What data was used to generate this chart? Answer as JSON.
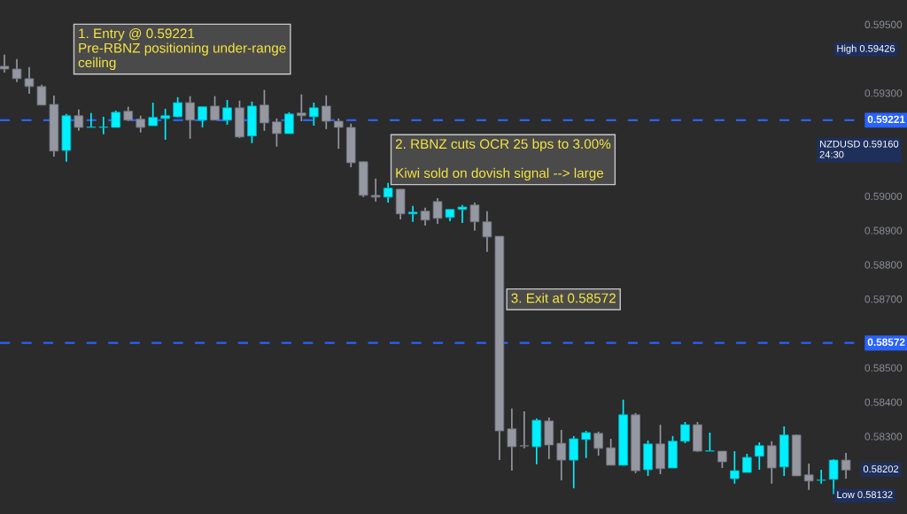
{
  "chart_data": {
    "type": "candlestick",
    "categories": [
      null,
      null,
      null,
      null,
      null,
      null,
      null,
      null,
      null,
      null,
      null,
      null,
      null,
      null,
      null,
      null,
      null,
      null,
      null,
      null,
      null,
      null,
      null,
      null,
      null,
      null,
      null,
      null,
      null,
      null,
      null,
      null,
      null,
      null,
      null,
      null,
      null,
      null,
      null,
      null,
      null,
      null,
      null,
      null,
      null,
      null,
      null,
      null,
      null,
      null,
      null,
      null,
      null,
      null,
      null,
      null,
      null,
      null,
      null,
      null,
      null,
      null,
      null,
      null,
      null,
      null,
      null,
      null,
      null
    ],
    "ohlc": [
      [
        0.59378,
        0.59412,
        0.5936,
        0.5937
      ],
      [
        0.5937,
        0.59399,
        0.59332,
        0.59342
      ],
      [
        0.59342,
        0.59376,
        0.59298,
        0.59319
      ],
      [
        0.59319,
        0.59324,
        0.59265,
        0.59265
      ],
      [
        0.59267,
        0.59293,
        0.59115,
        0.59131
      ],
      [
        0.59133,
        0.59239,
        0.591,
        0.59234
      ],
      [
        0.59234,
        0.59252,
        0.5919,
        0.592
      ],
      [
        0.592,
        0.59242,
        0.592,
        0.59201
      ],
      [
        0.592,
        0.59231,
        0.5918,
        0.59201
      ],
      [
        0.592,
        0.59249,
        0.592,
        0.59244
      ],
      [
        0.59247,
        0.5926,
        0.59218,
        0.59221
      ],
      [
        0.59224,
        0.59234,
        0.59185,
        0.592
      ],
      [
        0.59205,
        0.59272,
        0.59205,
        0.59229
      ],
      [
        0.59226,
        0.59254,
        0.59164,
        0.59234
      ],
      [
        0.59231,
        0.59288,
        0.59229,
        0.59272
      ],
      [
        0.59272,
        0.59291,
        0.59167,
        0.59221
      ],
      [
        0.59221,
        0.5926,
        0.592,
        0.5926
      ],
      [
        0.59262,
        0.59291,
        0.59221,
        0.59221
      ],
      [
        0.59221,
        0.5928,
        0.59208,
        0.59257
      ],
      [
        0.59257,
        0.59278,
        0.59169,
        0.59172
      ],
      [
        0.59175,
        0.59275,
        0.59154,
        0.59262
      ],
      [
        0.59265,
        0.59309,
        0.5919,
        0.59213
      ],
      [
        0.59216,
        0.59226,
        0.59144,
        0.59182
      ],
      [
        0.59182,
        0.59244,
        0.59182,
        0.59239
      ],
      [
        0.59242,
        0.59296,
        0.59218,
        0.59234
      ],
      [
        0.59231,
        0.59272,
        0.59205,
        0.59257
      ],
      [
        0.59262,
        0.59293,
        0.59195,
        0.59218
      ],
      [
        0.59218,
        0.59226,
        0.59138,
        0.592
      ],
      [
        0.592,
        0.59211,
        0.59084,
        0.59097
      ],
      [
        0.591,
        0.591,
        0.58997,
        0.59002
      ],
      [
        0.59002,
        0.59051,
        0.58984,
        0.58997
      ],
      [
        0.58997,
        0.59038,
        0.58981,
        0.59023
      ],
      [
        0.5902,
        0.5902,
        0.58932,
        0.58948
      ],
      [
        0.58948,
        0.58971,
        0.58925,
        0.58953
      ],
      [
        0.58956,
        0.58966,
        0.58914,
        0.5893
      ],
      [
        0.58984,
        0.58994,
        0.58919,
        0.58935
      ],
      [
        0.58938,
        0.58961,
        0.58927,
        0.58961
      ],
      [
        0.58961,
        0.58974,
        0.58922,
        0.58968
      ],
      [
        0.58974,
        0.58981,
        0.58899,
        0.58925
      ],
      [
        0.58925,
        0.58956,
        0.58837,
        0.58881
      ],
      [
        0.58883,
        0.58883,
        0.58231,
        0.58316
      ],
      [
        0.58322,
        0.58381,
        0.582,
        0.5827
      ],
      [
        0.58273,
        0.58373,
        0.58265,
        0.58272
      ],
      [
        0.5827,
        0.58352,
        0.58219,
        0.58347
      ],
      [
        0.58345,
        0.58355,
        0.58234,
        0.58275
      ],
      [
        0.5828,
        0.58319,
        0.58172,
        0.58231
      ],
      [
        0.58231,
        0.58301,
        0.58149,
        0.58293
      ],
      [
        0.58291,
        0.58316,
        0.58237,
        0.58311
      ],
      [
        0.58309,
        0.58314,
        0.58244,
        0.58265
      ],
      [
        0.58267,
        0.58293,
        0.58216,
        0.58216
      ],
      [
        0.58216,
        0.58407,
        0.58216,
        0.58363
      ],
      [
        0.58363,
        0.58368,
        0.58193,
        0.582
      ],
      [
        0.58203,
        0.58288,
        0.58185,
        0.58278
      ],
      [
        0.58278,
        0.58334,
        0.5819,
        0.58206
      ],
      [
        0.58208,
        0.58301,
        0.58208,
        0.58286
      ],
      [
        0.58286,
        0.58342,
        0.5828,
        0.58334
      ],
      [
        0.58334,
        0.58342,
        0.58255,
        0.58257
      ],
      [
        0.58257,
        0.58311,
        0.58257,
        0.58258
      ],
      [
        0.58257,
        0.58257,
        0.58208,
        0.58226
      ],
      [
        0.58177,
        0.58257,
        0.58162,
        0.582
      ],
      [
        0.58195,
        0.58249,
        0.58195,
        0.58239
      ],
      [
        0.58242,
        0.58283,
        0.58203,
        0.58273
      ],
      [
        0.58273,
        0.58286,
        0.58162,
        0.58208
      ],
      [
        0.58211,
        0.58329,
        0.58185,
        0.58304
      ],
      [
        0.58304,
        0.58306,
        0.58185,
        0.58185
      ],
      [
        0.58188,
        0.58221,
        0.58144,
        0.5817
      ],
      [
        0.58172,
        0.58203,
        0.58162,
        0.58173
      ],
      [
        0.58175,
        0.58234,
        0.58132,
        0.58231
      ],
      [
        0.58231,
        0.58252,
        0.58177,
        0.58202
      ]
    ],
    "colors": [
      "#9598a1",
      "#9598a1",
      "#9598a1",
      "#9598a1",
      "#9598a1",
      "#00f0ff",
      "#9598a1",
      "#00f0ff",
      "#00f0ff",
      "#00f0ff",
      "#9598a1",
      "#9598a1",
      "#00f0ff",
      "#00f0ff",
      "#00f0ff",
      "#9598a1",
      "#00f0ff",
      "#9598a1",
      "#00f0ff",
      "#9598a1",
      "#00f0ff",
      "#9598a1",
      "#9598a1",
      "#00f0ff",
      "#9598a1",
      "#00f0ff",
      "#9598a1",
      "#9598a1",
      "#9598a1",
      "#9598a1",
      "#9598a1",
      "#00f0ff",
      "#9598a1",
      "#00f0ff",
      "#9598a1",
      "#9598a1",
      "#00f0ff",
      "#00f0ff",
      "#9598a1",
      "#9598a1",
      "#9598a1",
      "#9598a1",
      "#9598a1",
      "#00f0ff",
      "#9598a1",
      "#9598a1",
      "#00f0ff",
      "#00f0ff",
      "#9598a1",
      "#9598a1",
      "#00f0ff",
      "#9598a1",
      "#00f0ff",
      "#9598a1",
      "#00f0ff",
      "#00f0ff",
      "#9598a1",
      "#00f0ff",
      "#9598a1",
      "#00f0ff",
      "#00f0ff",
      "#00f0ff",
      "#9598a1",
      "#00f0ff",
      "#9598a1",
      "#9598a1",
      "#00f0ff",
      "#00f0ff",
      "#9598a1"
    ],
    "ylim": [
      0.58074,
      0.59571
    ],
    "yticks": [
      {
        "value": 0.583,
        "label": "0.58300"
      },
      {
        "value": 0.584,
        "label": "0.58400"
      },
      {
        "value": 0.585,
        "label": "0.58500"
      },
      {
        "value": 0.587,
        "label": "0.58700"
      },
      {
        "value": 0.588,
        "label": "0.58800"
      },
      {
        "value": 0.589,
        "label": "0.58900"
      },
      {
        "value": 0.59,
        "label": "0.59000"
      },
      {
        "value": 0.593,
        "label": "0.59300"
      },
      {
        "value": 0.595,
        "label": "0.59500"
      }
    ],
    "tick_labels": "y",
    "ref_lines": [
      {
        "axis": "y",
        "value": 0.59221,
        "label": "0.59221",
        "color": "#2962ff",
        "line_style": "dashed"
      },
      {
        "axis": "y",
        "value": 0.58572,
        "label": "0.58572",
        "color": "#2962ff",
        "line_style": "dashed"
      }
    ],
    "annotations": [
      "1. Entry @ 0.59221\nPre-RBNZ positioning under-range\nceiling",
      "2. RBNZ cuts OCR 25 bps to 3.00%\n\nKiwi sold on dovish signal --> large",
      "3. Exit at 0.58572",
      "High 0.59426",
      "NZDUSD 0.59160\n24:30",
      "0.58202",
      "Low 0.58132"
    ]
  }
}
